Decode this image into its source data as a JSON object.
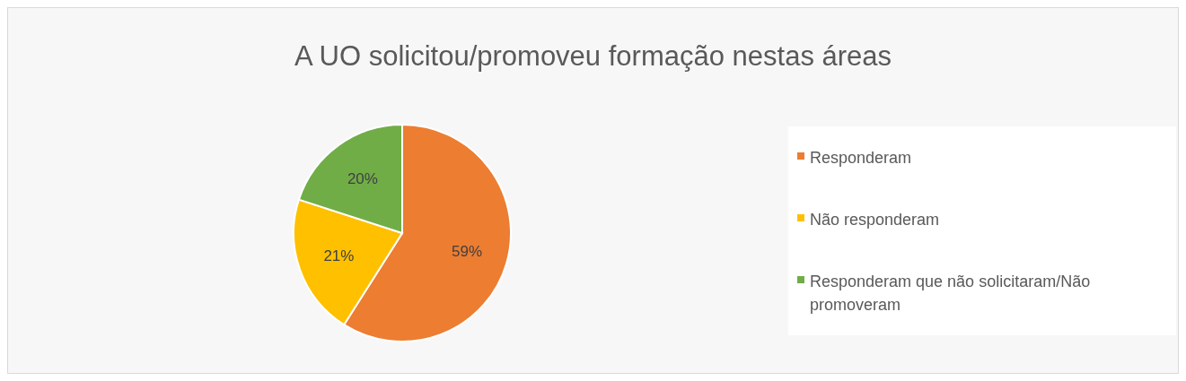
{
  "chart_data": {
    "type": "pie",
    "title": "A UO solicitou/promoveu formação nestas áreas",
    "categories": [
      "Responderam",
      "Não responderam",
      "Responderam que não solicitaram/Não promoveram"
    ],
    "values": [
      59,
      21,
      20
    ],
    "colors": [
      "#ed7d31",
      "#ffc000",
      "#70ad47"
    ],
    "value_labels": [
      "59%",
      "21%",
      "20%"
    ],
    "legend": "right"
  }
}
